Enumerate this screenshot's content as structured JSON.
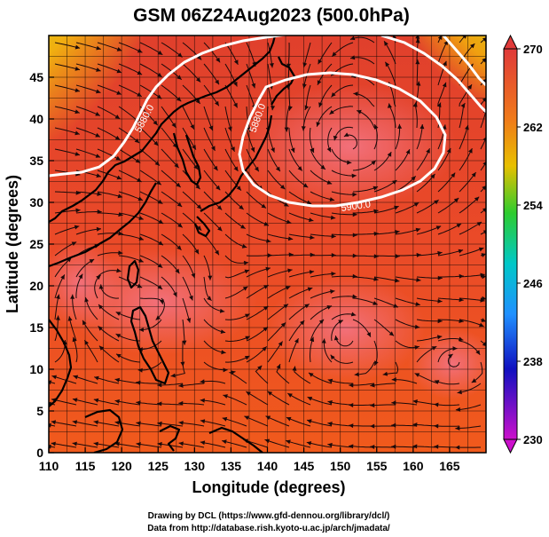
{
  "title": "GSM 06Z24Aug2023 (500.0hPa)",
  "xlabel": "Longitude (degrees)",
  "ylabel": "Latitude  (degrees)",
  "colorbar": {
    "ticks": [
      "270",
      "262",
      "254",
      "246",
      "238",
      "230"
    ],
    "colors": [
      "#e03a3a",
      "#f07a1a",
      "#e8c000",
      "#2ecc2e",
      "#00c8c8",
      "#2090ff",
      "#1010c0",
      "#cc10cc"
    ]
  },
  "contour_labels": [
    "5880.0",
    "5880.0",
    "5900.0"
  ],
  "credits": {
    "line1": "Drawing by DCL (https://www.gfd-dennou.org/library/dcl/)",
    "line2": "Data from http://database.rish.kyoto-u.ac.jp/arch/jmadata/"
  },
  "chart_data": {
    "type": "heatmap",
    "x_ticks": [
      "110",
      "115",
      "120",
      "125",
      "130",
      "135",
      "140",
      "145",
      "150",
      "155",
      "160",
      "165"
    ],
    "y_ticks": [
      "0",
      "5",
      "10",
      "15",
      "20",
      "25",
      "30",
      "35",
      "40",
      "45"
    ],
    "xlim": [
      110,
      170
    ],
    "ylim": [
      0,
      50
    ],
    "colorbar_range": [
      230,
      270
    ],
    "field": "temperature (K)",
    "overlay": "streamlines + geopotential height contours",
    "contours": [
      5880.0,
      5900.0
    ]
  }
}
